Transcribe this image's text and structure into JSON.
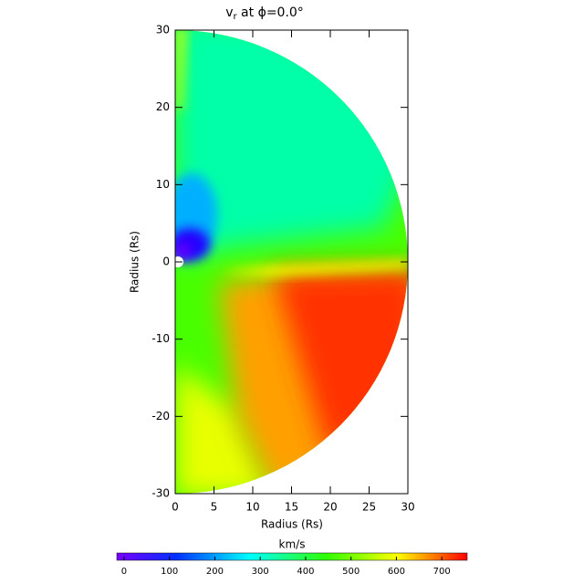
{
  "chart_data": {
    "type": "heatmap",
    "title": "v",
    "title_subscript": "r",
    "title_rest": " at ϕ=0.0°",
    "xlabel": "Radius (Rs)",
    "ylabel": "Radius (Rs)",
    "xlim": [
      0,
      30
    ],
    "xticks": [
      0,
      5,
      10,
      15,
      20,
      25,
      30
    ],
    "ylim": [
      -30,
      30
    ],
    "yticks": [
      -30,
      -20,
      -10,
      0,
      10,
      20,
      30
    ],
    "colorbar": {
      "label": "km/s",
      "lim": [
        -16,
        756
      ],
      "ticks": [
        0,
        100,
        200,
        300,
        400,
        500,
        600,
        700
      ]
    }
  }
}
